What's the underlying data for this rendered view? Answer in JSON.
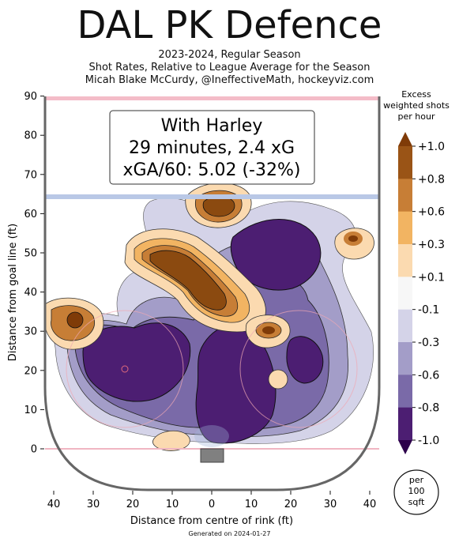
{
  "title": "DAL PK Defence",
  "subtitle_lines": [
    "2023-2024, Regular Season",
    "Shot Rates, Relative to League Average for the Season",
    "Micah Blake McCurdy, @IneffectiveMath, hockeyviz.com"
  ],
  "footer": "Generated on 2024-01-27",
  "annotation": {
    "line1": "With Harley",
    "line2": "29 minutes, 2.4 xG",
    "line3": "xGA/60: 5.02 (-32%)"
  },
  "chart_data": {
    "type": "heatmap",
    "title": "DAL PK Defence",
    "xlabel": "Distance from centre of rink (ft)",
    "ylabel": "Distance from goal line (ft)",
    "xlim": [
      -42,
      42
    ],
    "ylim": [
      -11,
      90
    ],
    "x_ticks": [
      -40,
      -30,
      -20,
      -10,
      0,
      10,
      20,
      30,
      40
    ],
    "x_tick_labels": [
      "40",
      "30",
      "20",
      "10",
      "0",
      "10",
      "20",
      "30",
      "40"
    ],
    "y_ticks": [
      0,
      10,
      20,
      30,
      40,
      50,
      60,
      70,
      80,
      90
    ],
    "y_tick_labels": [
      "0",
      "10",
      "20",
      "30",
      "40",
      "50",
      "60",
      "70",
      "80",
      "90"
    ],
    "grid": false,
    "colorbar": {
      "title_lines": [
        "Excess",
        "weighted shots",
        "per hour"
      ],
      "tick_labels": [
        "+1.0",
        "+0.8",
        "+0.6",
        "+0.3",
        "+0.1",
        "-0.1",
        "-0.3",
        "-0.6",
        "-0.8",
        "-1.0"
      ],
      "colors": [
        "#9a5416",
        "#c77e36",
        "#f2b462",
        "#fbdab0",
        "#f7f7f7",
        "#d4d3e8",
        "#a39dc8",
        "#7a6aa8",
        "#4c1e72"
      ],
      "top_arrow_color": "#7f3b08",
      "bottom_arrow_color": "#2d004b",
      "unit_lines": [
        "per",
        "100",
        "sqft"
      ]
    },
    "hotspots": [
      {
        "x": 0,
        "y": 62,
        "value": 1.0
      },
      {
        "x": -21,
        "y": 50,
        "value": 1.0
      },
      {
        "x": -6,
        "y": 40,
        "value": 1.0
      },
      {
        "x": -34,
        "y": 33,
        "value": 1.0
      },
      {
        "x": 15,
        "y": 30,
        "value": 0.9
      },
      {
        "x": 36,
        "y": 53,
        "value": 0.6
      },
      {
        "x": -16,
        "y": 2,
        "value": 0.4
      },
      {
        "x": 17,
        "y": 18,
        "value": 0.2
      }
    ],
    "coldspots": [
      {
        "x": -20,
        "y": 21,
        "value": -1.0
      },
      {
        "x": 5,
        "y": 16,
        "value": -1.0
      },
      {
        "x": 12,
        "y": 44,
        "value": -1.0
      },
      {
        "x": 26,
        "y": 24,
        "value": -0.8
      },
      {
        "x": 18,
        "y": 54,
        "value": -0.6
      },
      {
        "x": -7,
        "y": 25,
        "value": -0.8
      }
    ]
  }
}
